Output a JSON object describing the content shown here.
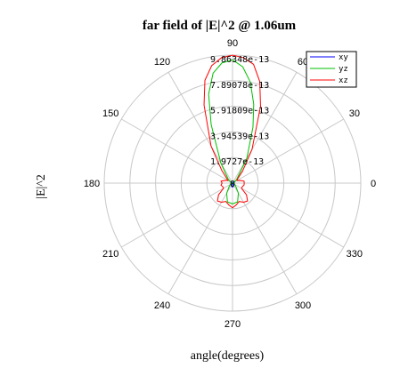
{
  "chart_data": {
    "type": "polar",
    "title": "far field of |E|^2 @ 1.06um",
    "xlabel": "angle(degrees)",
    "ylabel": "|E|^2",
    "angle_ticks": [
      "0",
      "30",
      "60",
      "90",
      "120",
      "150",
      "180",
      "210",
      "240",
      "270",
      "300",
      "330"
    ],
    "radial_max": 9.86348e-13,
    "radial_ticks": [
      {
        "value": 1.9727e-13,
        "label": "1.9727e-13"
      },
      {
        "value": 3.94539e-13,
        "label": "3.94539e-13"
      },
      {
        "value": 5.91809e-13,
        "label": "5.91809e-13"
      },
      {
        "value": 7.89078e-13,
        "label": "7.89078e-13"
      },
      {
        "value": 9.86348e-13,
        "label": "9.86348e-13"
      }
    ],
    "center_label": "0",
    "grid": true,
    "legend_position": "top-right",
    "series": [
      {
        "name": "xy",
        "color": "#0000ff",
        "angles_deg": [
          0,
          30,
          60,
          90,
          120,
          150,
          180,
          210,
          240,
          255,
          270,
          285,
          300,
          330
        ],
        "values": [
          1e-15,
          2e-15,
          5e-15,
          8e-15,
          5e-15,
          2e-15,
          1e-15,
          2e-15,
          1.2e-14,
          2.8e-14,
          3e-14,
          2.8e-14,
          1.2e-14,
          2e-15
        ]
      },
      {
        "name": "yz",
        "color": "#00c000",
        "angles_deg": [
          0,
          20,
          40,
          60,
          70,
          75,
          80,
          85,
          90,
          95,
          100,
          105,
          110,
          120,
          140,
          160,
          180,
          200,
          220,
          240,
          255,
          270,
          285,
          300,
          320,
          340
        ],
        "values": [
          5e-15,
          1e-14,
          4e-14,
          2.2e-13,
          4.6e-13,
          6.3e-13,
          7.9e-13,
          9e-13,
          9.5e-13,
          9.3e-13,
          8.6e-13,
          7.1e-13,
          4.8e-13,
          1.8e-13,
          4e-14,
          1e-14,
          5e-15,
          1e-14,
          3e-14,
          9e-14,
          1.5e-13,
          1.6e-13,
          1.5e-13,
          9e-14,
          3e-14,
          1e-14
        ]
      },
      {
        "name": "xz",
        "color": "#ff0000",
        "angles_deg": [
          0,
          10,
          20,
          30,
          40,
          50,
          60,
          70,
          75,
          80,
          85,
          90,
          95,
          100,
          105,
          110,
          120,
          130,
          140,
          150,
          160,
          170,
          180,
          190,
          200,
          210,
          220,
          230,
          240,
          250,
          260,
          270,
          280,
          290,
          300,
          310,
          320,
          330,
          340,
          350
        ],
        "values": [
          9e-14,
          9e-14,
          6e-14,
          4e-14,
          5e-14,
          1.2e-13,
          3e-13,
          6.3e-13,
          8.1e-13,
          9.3e-13,
          9.7e-13,
          9.86e-13,
          9.7e-13,
          9.2e-13,
          8.2e-13,
          6.4e-13,
          3.3e-13,
          1.3e-13,
          6e-14,
          4e-14,
          6e-14,
          9e-14,
          8e-14,
          9e-14,
          8e-14,
          8e-14,
          1.4e-13,
          1.8e-13,
          1.7e-13,
          1.5e-13,
          1.7e-13,
          1.9e-13,
          1.7e-13,
          1.5e-13,
          1.7e-13,
          1.8e-13,
          1.4e-13,
          8e-14,
          8e-14,
          9e-14
        ]
      }
    ]
  }
}
